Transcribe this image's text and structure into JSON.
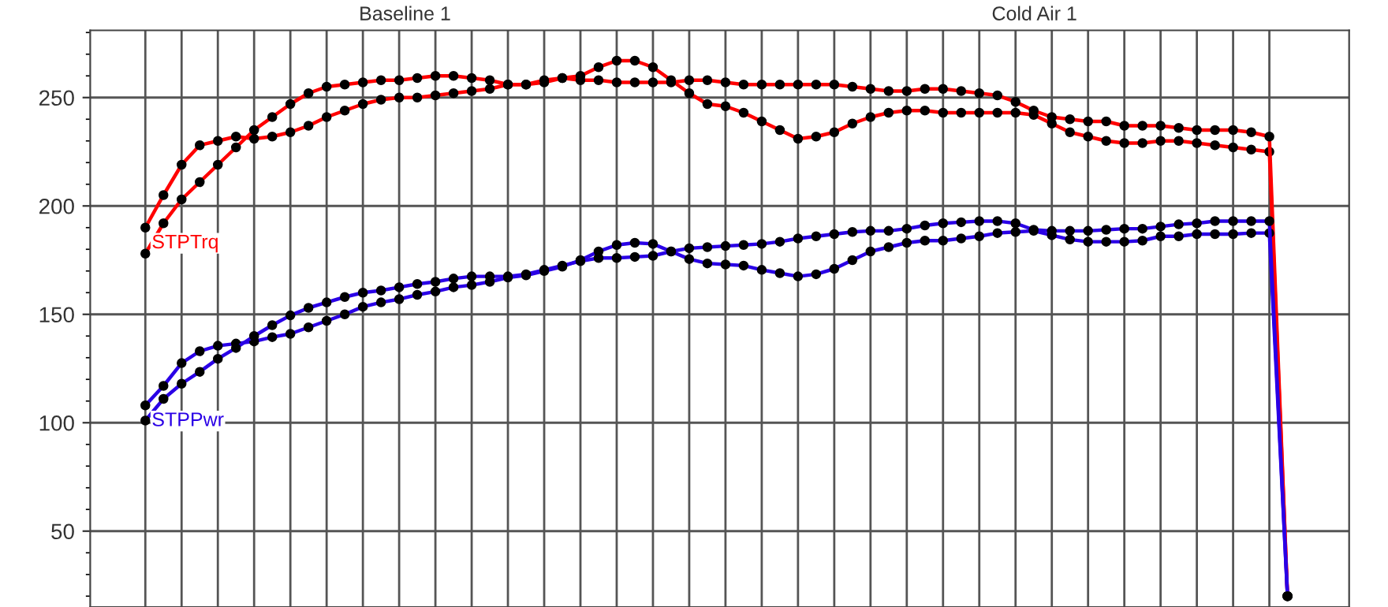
{
  "chart_data": {
    "type": "line",
    "categories": [
      null,
      null,
      null,
      null,
      null,
      null,
      null,
      null,
      null,
      null,
      null,
      null,
      null,
      null,
      null,
      null,
      null,
      null,
      null,
      null,
      null,
      null,
      null,
      null,
      null,
      null,
      null,
      null,
      null,
      null,
      null,
      null,
      null,
      null,
      null,
      null,
      null,
      null,
      null,
      null,
      null,
      null,
      null,
      null,
      null,
      null,
      null,
      null,
      null,
      null,
      null,
      null,
      null,
      null,
      null,
      null,
      null,
      null,
      null,
      null,
      null,
      null,
      null,
      null
    ],
    "series": [
      {
        "name": "STPTrq",
        "color": "#ff0000",
        "values": [
          190,
          205,
          219,
          228,
          230,
          232,
          231,
          232,
          234,
          237,
          241,
          244,
          247,
          249,
          250,
          250,
          251,
          252,
          253,
          254,
          256,
          256,
          257,
          259,
          260,
          264,
          267,
          267,
          264,
          258,
          252,
          247,
          246,
          243,
          239,
          235,
          231,
          232,
          234,
          238,
          241,
          243,
          244,
          244,
          243,
          243,
          243,
          243,
          243,
          242,
          238,
          234,
          232,
          230,
          229,
          229,
          230,
          230,
          229,
          228,
          227,
          226,
          225,
          20
        ]
      },
      {
        "color": "#ff0000",
        "values": [
          178,
          192,
          203,
          211,
          219,
          227,
          235,
          241,
          247,
          252,
          255,
          256,
          257,
          258,
          258,
          259,
          260,
          260,
          259,
          258,
          256,
          256,
          258,
          259,
          258,
          258,
          257,
          257,
          257,
          257,
          258,
          258,
          257,
          256,
          256,
          256,
          256,
          256,
          256,
          255,
          254,
          253,
          253,
          254,
          254,
          253,
          252,
          251,
          248,
          244,
          241,
          240,
          239,
          239,
          237,
          237,
          237,
          236,
          235,
          235,
          235,
          234,
          232,
          20
        ]
      },
      {
        "name": "STPPwr",
        "color": "#2a00e6",
        "values": [
          108,
          117,
          127.5,
          133,
          135.5,
          136.5,
          137.5,
          139.5,
          141,
          144,
          147,
          150,
          153.5,
          155.5,
          157,
          159,
          160.5,
          162.5,
          163.5,
          165,
          167,
          168,
          170,
          172,
          175,
          179,
          182,
          183,
          182.5,
          179,
          175.5,
          173.5,
          173,
          172.5,
          170.5,
          169,
          167.5,
          168.5,
          171,
          175,
          179,
          181,
          183,
          184,
          184,
          185,
          186,
          187.5,
          188,
          188.5,
          186.5,
          184.5,
          183.5,
          183.5,
          183.5,
          184,
          186,
          186,
          187,
          187,
          187,
          187.5,
          187.5,
          20
        ]
      },
      {
        "color": "#2a00e6",
        "values": [
          101,
          111,
          118,
          123.5,
          129.5,
          134.5,
          140,
          145,
          149.5,
          153,
          155.5,
          158,
          160,
          161,
          162.5,
          164,
          165,
          166.5,
          167.5,
          167.5,
          167.5,
          168.5,
          170.5,
          172.5,
          174.5,
          176,
          176,
          176.5,
          177,
          179,
          180.5,
          181,
          181.5,
          182,
          182.5,
          183.5,
          185,
          186,
          187,
          188,
          188.5,
          188.5,
          189.5,
          191,
          192,
          192.5,
          193,
          193,
          192,
          189,
          188.5,
          188.5,
          188.5,
          189,
          189.5,
          189.5,
          190.5,
          191.5,
          192,
          193,
          193,
          193,
          193,
          20
        ]
      }
    ],
    "annotations": [
      "Baseline 1",
      "Cold Air 1"
    ],
    "ylim": [
      15,
      281
    ],
    "yticks": [
      50,
      100,
      150,
      200,
      250
    ],
    "grid": true,
    "marker": "circle",
    "line_style": "solid",
    "tick_labels": "y"
  }
}
